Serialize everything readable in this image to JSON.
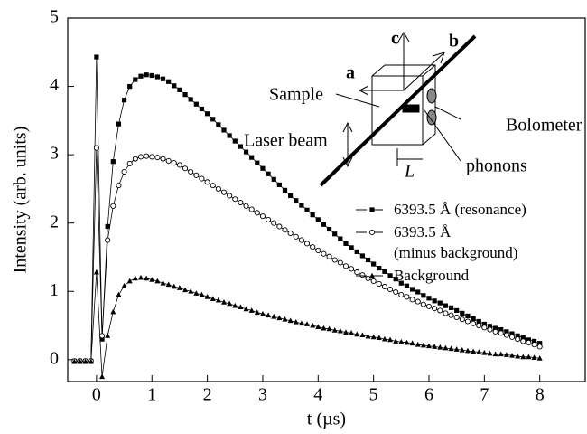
{
  "chart_data": {
    "type": "line",
    "x_label": "t  (µs)",
    "y_label": "Intensity  (arb. units)",
    "xlim": [
      -0.52,
      8.82
    ],
    "ylim": [
      -0.32,
      5
    ],
    "xticks": [
      0,
      1,
      2,
      3,
      4,
      5,
      6,
      7,
      8
    ],
    "yticks": [
      0,
      1,
      2,
      3,
      4,
      5
    ],
    "x": [
      -0.4,
      -0.3,
      -0.2,
      -0.1,
      0,
      0.1,
      0.2,
      0.3,
      0.4,
      0.5,
      0.6,
      0.7,
      0.8,
      0.9,
      1.0,
      1.1,
      1.2,
      1.3,
      1.4,
      1.5,
      1.6,
      1.7,
      1.8,
      1.9,
      2.0,
      2.1,
      2.2,
      2.3,
      2.4,
      2.5,
      2.6,
      2.7,
      2.8,
      2.9,
      3.0,
      3.1,
      3.2,
      3.3,
      3.4,
      3.5,
      3.6,
      3.7,
      3.8,
      3.9,
      4.0,
      4.1,
      4.2,
      4.3,
      4.4,
      4.5,
      4.6,
      4.7,
      4.8,
      4.9,
      5.0,
      5.1,
      5.2,
      5.3,
      5.4,
      5.5,
      5.6,
      5.7,
      5.8,
      5.9,
      6.0,
      6.1,
      6.2,
      6.3,
      6.4,
      6.5,
      6.6,
      6.7,
      6.8,
      6.9,
      7.0,
      7.1,
      7.2,
      7.3,
      7.4,
      7.5,
      7.6,
      7.7,
      7.8,
      7.9,
      8.0
    ],
    "series": [
      {
        "name": "6393.5 Å (resonance)",
        "color": "#000000",
        "marker": "square",
        "values": [
          -0.02,
          -0.02,
          -0.02,
          -0.02,
          4.43,
          0.3,
          1.95,
          2.9,
          3.45,
          3.8,
          4.0,
          4.1,
          4.15,
          4.17,
          4.16,
          4.14,
          4.11,
          4.07,
          4.01,
          3.95,
          3.88,
          3.81,
          3.74,
          3.67,
          3.6,
          3.52,
          3.44,
          3.36,
          3.28,
          3.2,
          3.12,
          3.04,
          2.96,
          2.88,
          2.8,
          2.72,
          2.64,
          2.56,
          2.48,
          2.4,
          2.33,
          2.26,
          2.19,
          2.12,
          2.05,
          1.98,
          1.91,
          1.84,
          1.77,
          1.7,
          1.64,
          1.58,
          1.52,
          1.46,
          1.4,
          1.34,
          1.29,
          1.23,
          1.18,
          1.12,
          1.08,
          1.03,
          0.99,
          0.94,
          0.9,
          0.86,
          0.83,
          0.79,
          0.76,
          0.72,
          0.68,
          0.64,
          0.6,
          0.56,
          0.52,
          0.49,
          0.46,
          0.44,
          0.41,
          0.38,
          0.35,
          0.32,
          0.29,
          0.27,
          0.24
        ]
      },
      {
        "name": "6393.5 Å\n(minus background)",
        "color": "#000000",
        "marker": "circle",
        "values": [
          -0.02,
          -0.02,
          -0.02,
          -0.02,
          3.1,
          0.35,
          1.75,
          2.25,
          2.55,
          2.75,
          2.87,
          2.94,
          2.97,
          2.98,
          2.97,
          2.96,
          2.94,
          2.91,
          2.88,
          2.85,
          2.8,
          2.75,
          2.7,
          2.65,
          2.6,
          2.55,
          2.5,
          2.45,
          2.4,
          2.35,
          2.3,
          2.25,
          2.2,
          2.15,
          2.1,
          2.05,
          2.0,
          1.95,
          1.9,
          1.85,
          1.8,
          1.75,
          1.7,
          1.65,
          1.6,
          1.55,
          1.51,
          1.46,
          1.42,
          1.37,
          1.33,
          1.28,
          1.24,
          1.19,
          1.15,
          1.11,
          1.07,
          1.03,
          0.99,
          0.95,
          0.92,
          0.88,
          0.85,
          0.81,
          0.78,
          0.75,
          0.72,
          0.68,
          0.65,
          0.62,
          0.59,
          0.56,
          0.53,
          0.5,
          0.47,
          0.44,
          0.41,
          0.39,
          0.36,
          0.33,
          0.3,
          0.27,
          0.25,
          0.22,
          0.19
        ]
      },
      {
        "name": "Background",
        "color": "#000000",
        "marker": "triangle",
        "values": [
          -0.03,
          -0.03,
          -0.03,
          -0.03,
          1.28,
          -0.25,
          0.35,
          0.7,
          0.95,
          1.08,
          1.15,
          1.19,
          1.2,
          1.19,
          1.17,
          1.15,
          1.12,
          1.1,
          1.07,
          1.05,
          1.02,
          1.0,
          0.97,
          0.95,
          0.92,
          0.89,
          0.87,
          0.84,
          0.82,
          0.79,
          0.77,
          0.74,
          0.72,
          0.69,
          0.67,
          0.65,
          0.63,
          0.61,
          0.59,
          0.57,
          0.55,
          0.53,
          0.52,
          0.5,
          0.48,
          0.46,
          0.45,
          0.43,
          0.42,
          0.4,
          0.39,
          0.37,
          0.36,
          0.34,
          0.33,
          0.32,
          0.3,
          0.29,
          0.27,
          0.26,
          0.25,
          0.24,
          0.22,
          0.21,
          0.2,
          0.19,
          0.18,
          0.17,
          0.16,
          0.15,
          0.14,
          0.13,
          0.12,
          0.11,
          0.1,
          0.09,
          0.08,
          0.08,
          0.07,
          0.06,
          0.05,
          0.04,
          0.04,
          0.03,
          0.02
        ]
      }
    ],
    "annotations": [
      "c",
      "b",
      "a",
      "Sample",
      "Laser beam",
      "Bolometer",
      "phonons",
      "L"
    ]
  }
}
